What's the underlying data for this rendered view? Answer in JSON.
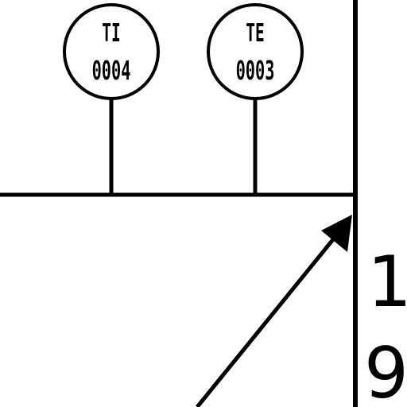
{
  "instruments": [
    {
      "function_code": "TI",
      "loop_number": "0004"
    },
    {
      "function_code": "TE",
      "loop_number": "0003"
    }
  ],
  "sheet_reference": {
    "lines": [
      "1",
      "9"
    ]
  },
  "colors": {
    "line": "#000000",
    "background": "#ffffff"
  }
}
